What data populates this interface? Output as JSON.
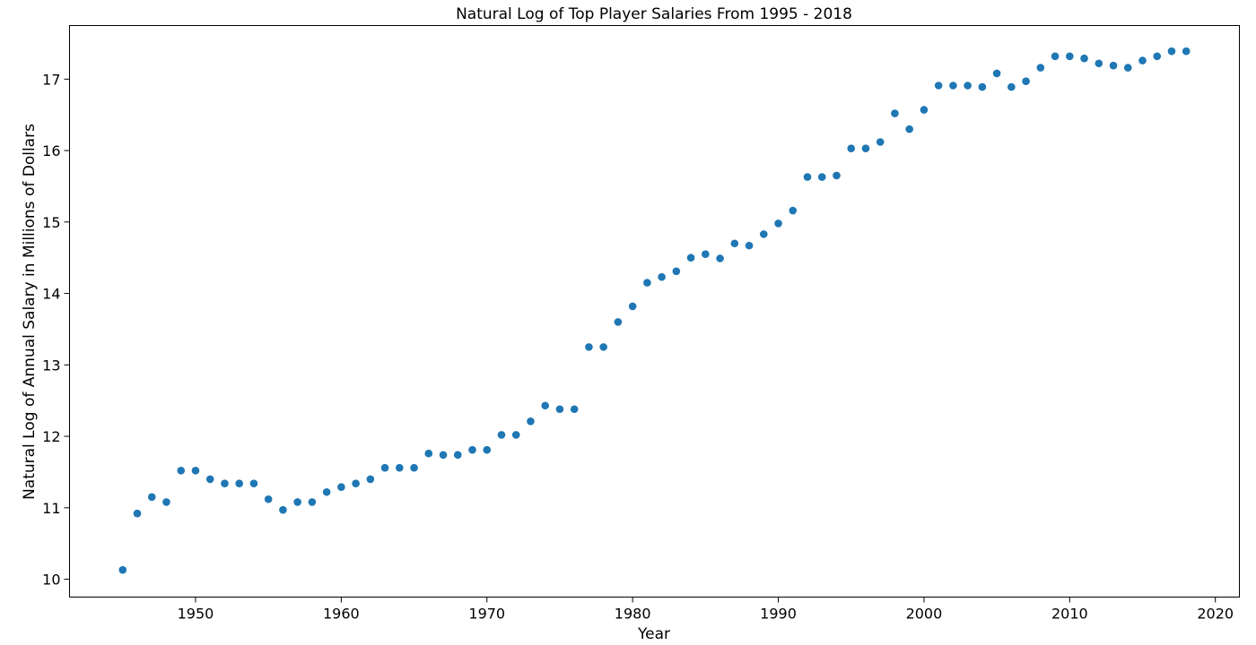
{
  "chart_data": {
    "type": "scatter",
    "title": "Natural Log of Top Player Salaries From 1995 - 2018",
    "xlabel": "Year",
    "ylabel": "Natural Log of Annual Salary in Millions of Dollars",
    "xlim": [
      1941.35,
      2021.65
    ],
    "ylim": [
      9.75,
      17.75
    ],
    "xticks": [
      1950,
      1960,
      1970,
      1980,
      1990,
      2000,
      2010,
      2020
    ],
    "yticks": [
      10,
      11,
      12,
      13,
      14,
      15,
      16,
      17
    ],
    "grid": false,
    "marker_color": "#1f77b4",
    "series": [
      {
        "x": [
          1945,
          1946,
          1947,
          1948,
          1949,
          1950,
          1951,
          1952,
          1953,
          1954,
          1955,
          1956,
          1957,
          1958,
          1959,
          1960,
          1961,
          1962,
          1963,
          1964,
          1965,
          1966,
          1967,
          1968,
          1969,
          1970,
          1971,
          1972,
          1973,
          1974,
          1975,
          1976,
          1977,
          1978,
          1979,
          1980,
          1981,
          1982,
          1983,
          1984,
          1985,
          1986,
          1987,
          1988,
          1989,
          1990,
          1991,
          1992,
          1993,
          1994,
          1995,
          1996,
          1997,
          1998,
          1999,
          2000,
          2001,
          2002,
          2003,
          2004,
          2005,
          2006,
          2007,
          2008,
          2009,
          2010,
          2011,
          2012,
          2013,
          2014,
          2015,
          2016,
          2017,
          2018
        ],
        "y": [
          10.13,
          10.92,
          11.15,
          11.08,
          11.52,
          11.52,
          11.4,
          11.34,
          11.34,
          11.34,
          11.12,
          10.97,
          11.08,
          11.08,
          11.22,
          11.29,
          11.34,
          11.4,
          11.56,
          11.56,
          11.56,
          11.76,
          11.74,
          11.74,
          11.81,
          11.81,
          12.02,
          12.02,
          12.21,
          12.43,
          12.38,
          12.38,
          13.25,
          13.25,
          13.6,
          13.82,
          14.15,
          14.23,
          14.31,
          14.5,
          14.55,
          14.49,
          14.7,
          14.67,
          14.83,
          14.98,
          15.16,
          15.63,
          15.63,
          15.65,
          16.03,
          16.03,
          16.12,
          16.52,
          16.3,
          16.57,
          16.91,
          16.91,
          16.91,
          16.89,
          17.08,
          16.89,
          16.97,
          17.16,
          17.32,
          17.32,
          17.29,
          17.22,
          17.19,
          17.16,
          17.26,
          17.32,
          17.39,
          17.39
        ]
      }
    ]
  }
}
